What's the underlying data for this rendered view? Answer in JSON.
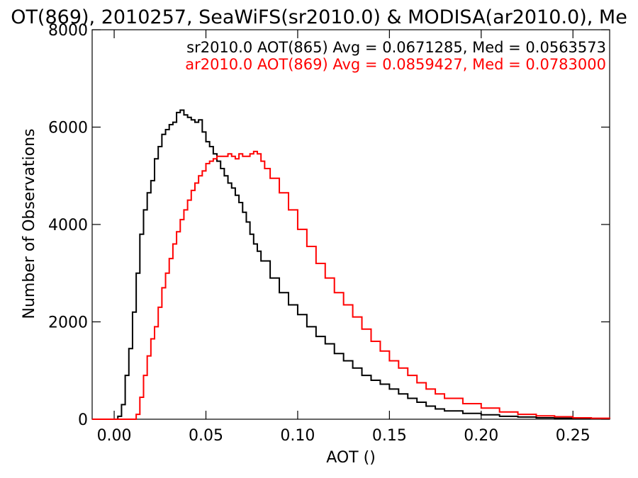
{
  "chart_data": {
    "type": "line",
    "title": "OT(869), 2010257, SeaWiFS(sr2010.0) & MODISA(ar2010.0), Me",
    "xlabel": "AOT ()",
    "ylabel": "Number of Observations",
    "xlim": [
      -0.012,
      0.27
    ],
    "ylim": [
      0,
      8000
    ],
    "x_ticks": [
      0.0,
      0.05,
      0.1,
      0.15,
      0.2,
      0.25
    ],
    "x_tick_labels": [
      "0.00",
      "0.05",
      "0.10",
      "0.15",
      "0.20",
      "0.25"
    ],
    "y_ticks": [
      0,
      2000,
      4000,
      6000,
      8000
    ],
    "y_tick_labels": [
      "0",
      "2000",
      "4000",
      "6000",
      "8000"
    ],
    "grid": false,
    "legend_position": "top-right",
    "series": [
      {
        "label": "sr2010.0 AOT(865) Avg = 0.0671285, Med = 0.0563573",
        "color": "#000000",
        "x": [
          -0.012,
          0.0,
          0.002,
          0.004,
          0.006,
          0.008,
          0.01,
          0.012,
          0.014,
          0.016,
          0.018,
          0.02,
          0.022,
          0.024,
          0.026,
          0.028,
          0.03,
          0.032,
          0.034,
          0.036,
          0.038,
          0.04,
          0.042,
          0.044,
          0.046,
          0.048,
          0.05,
          0.052,
          0.054,
          0.056,
          0.058,
          0.06,
          0.062,
          0.064,
          0.066,
          0.068,
          0.07,
          0.072,
          0.074,
          0.076,
          0.078,
          0.08,
          0.085,
          0.09,
          0.095,
          0.1,
          0.105,
          0.11,
          0.115,
          0.12,
          0.125,
          0.13,
          0.135,
          0.14,
          0.145,
          0.15,
          0.155,
          0.16,
          0.165,
          0.17,
          0.175,
          0.18,
          0.19,
          0.2,
          0.21,
          0.22,
          0.23,
          0.24,
          0.25,
          0.26,
          0.27
        ],
        "y": [
          0,
          0,
          60,
          300,
          900,
          1450,
          2200,
          3000,
          3800,
          4300,
          4650,
          4900,
          5350,
          5600,
          5850,
          5950,
          6050,
          6100,
          6300,
          6350,
          6250,
          6200,
          6150,
          6100,
          6150,
          5900,
          5700,
          5600,
          5450,
          5300,
          5150,
          5000,
          4850,
          4750,
          4600,
          4450,
          4250,
          4050,
          3800,
          3600,
          3450,
          3250,
          2900,
          2600,
          2350,
          2150,
          1900,
          1700,
          1550,
          1350,
          1200,
          1050,
          900,
          800,
          720,
          620,
          520,
          430,
          350,
          270,
          210,
          170,
          120,
          90,
          60,
          45,
          30,
          20,
          12,
          8,
          5
        ]
      },
      {
        "label": "ar2010.0 AOT(869) Avg = 0.0859427, Med = 0.0783000",
        "color": "#ff0000",
        "x": [
          -0.012,
          0.01,
          0.012,
          0.014,
          0.016,
          0.018,
          0.02,
          0.022,
          0.024,
          0.026,
          0.028,
          0.03,
          0.032,
          0.034,
          0.036,
          0.038,
          0.04,
          0.042,
          0.044,
          0.046,
          0.048,
          0.05,
          0.052,
          0.054,
          0.056,
          0.058,
          0.06,
          0.062,
          0.064,
          0.066,
          0.068,
          0.07,
          0.072,
          0.074,
          0.076,
          0.078,
          0.08,
          0.082,
          0.085,
          0.09,
          0.095,
          0.1,
          0.105,
          0.11,
          0.115,
          0.12,
          0.125,
          0.13,
          0.135,
          0.14,
          0.145,
          0.15,
          0.155,
          0.16,
          0.165,
          0.17,
          0.175,
          0.18,
          0.19,
          0.2,
          0.21,
          0.22,
          0.23,
          0.24,
          0.25,
          0.26,
          0.27
        ],
        "y": [
          0,
          0,
          100,
          450,
          900,
          1300,
          1650,
          1900,
          2300,
          2700,
          3000,
          3300,
          3600,
          3850,
          4100,
          4300,
          4500,
          4700,
          4850,
          5000,
          5100,
          5250,
          5300,
          5350,
          5400,
          5400,
          5400,
          5450,
          5400,
          5350,
          5450,
          5400,
          5400,
          5450,
          5500,
          5450,
          5300,
          5150,
          4950,
          4650,
          4300,
          3900,
          3550,
          3200,
          2900,
          2600,
          2350,
          2100,
          1850,
          1600,
          1400,
          1200,
          1050,
          900,
          750,
          620,
          520,
          430,
          320,
          230,
          150,
          100,
          70,
          50,
          30,
          20,
          12
        ]
      }
    ]
  }
}
